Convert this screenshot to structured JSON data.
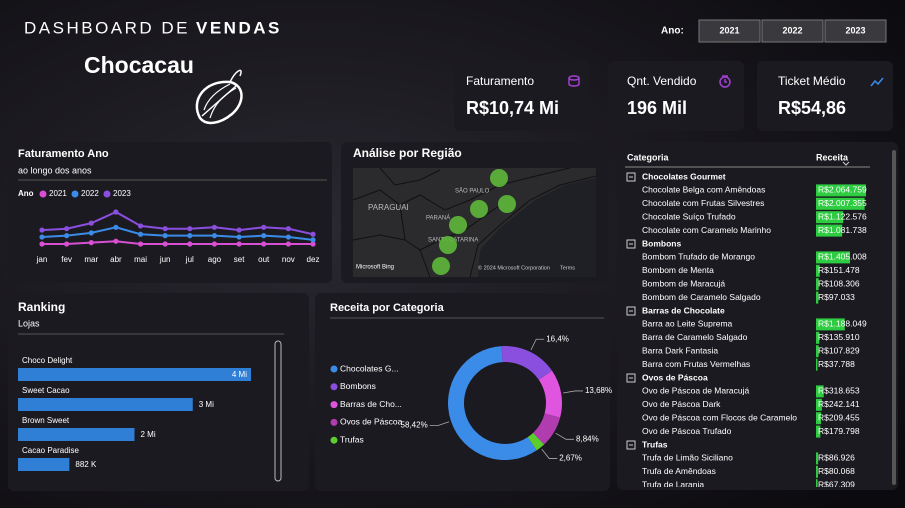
{
  "header": {
    "title_light": "DASHBOARD DE",
    "title_bold": "VENDAS",
    "logo": "Chocacau",
    "year_label": "Ano:",
    "years": [
      "2021",
      "2022",
      "2023"
    ]
  },
  "kpis": [
    {
      "label": "Faturamento",
      "value": "R$10,74 Mi"
    },
    {
      "label": "Qnt. Vendido",
      "value": "196 Mil"
    },
    {
      "label": "Ticket Médio",
      "value": "R$54,86"
    }
  ],
  "map": {
    "title": "Análise por Região",
    "places": [
      "PARAGUAI",
      "SÃO PAULO",
      "PARANÁ",
      "SANTA CATARINA"
    ],
    "credits": [
      "Microsoft Bing",
      "© 2024 Microsoft Corporation",
      "Terms"
    ]
  },
  "chart_data": [
    {
      "type": "line",
      "title": "Faturamento Ano",
      "subtitle": "ao longo dos anos",
      "legend_title": "Ano",
      "categories": [
        "jan",
        "fev",
        "mar",
        "abr",
        "mai",
        "jun",
        "jul",
        "ago",
        "set",
        "out",
        "nov",
        "dez"
      ],
      "series": [
        {
          "name": "2021",
          "color": "#d94fd4",
          "values": [
            0.22,
            0.22,
            0.23,
            0.24,
            0.22,
            0.22,
            0.22,
            0.22,
            0.22,
            0.22,
            0.22,
            0.22
          ]
        },
        {
          "name": "2022",
          "color": "#3b8be8",
          "values": [
            0.27,
            0.28,
            0.3,
            0.34,
            0.29,
            0.28,
            0.28,
            0.28,
            0.27,
            0.28,
            0.27,
            0.25
          ]
        },
        {
          "name": "2023",
          "color": "#8b4fe0",
          "values": [
            0.32,
            0.33,
            0.37,
            0.45,
            0.35,
            0.33,
            0.33,
            0.34,
            0.32,
            0.34,
            0.33,
            0.29
          ]
        }
      ]
    },
    {
      "type": "bar",
      "orientation": "horizontal",
      "title": "Ranking",
      "subtitle": "Lojas",
      "color": "#2f7fd6",
      "categories": [
        "Choco Delight",
        "Sweet Cacao",
        "Brown Sweet",
        "Cacao Paradise"
      ],
      "values": [
        4000000,
        3000000,
        2000000,
        882000
      ],
      "value_labels": [
        "4 Mi",
        "3 Mi",
        "2 Mi",
        "882 K"
      ]
    },
    {
      "type": "pie",
      "donut": true,
      "title": "Receita por Categoria",
      "categories": [
        "Chocolates G...",
        "Bombons",
        "Barras de Cho...",
        "Ovos de Páscoa",
        "Trufas"
      ],
      "colors": [
        "#3b8be8",
        "#8b4fe0",
        "#e055e0",
        "#b03cb0",
        "#5ccc2e"
      ],
      "values": [
        58.42,
        16.4,
        13.68,
        8.84,
        2.67
      ],
      "value_labels": [
        "58,42%",
        "16,4%",
        "13,68%",
        "8,84%",
        "2,67%"
      ]
    }
  ],
  "table": {
    "headers": [
      "Categoria",
      "Receita"
    ],
    "bar_color": "#2ecc40",
    "groups": [
      {
        "name": "Chocolates Gourmet",
        "rows": [
          {
            "name": "Chocolate Belga com Amêndoas",
            "value": 2064759,
            "value_label": "R$2.064.759"
          },
          {
            "name": "Chocolate com Frutas Silvestres",
            "value": 2007355,
            "value_label": "R$2.007.355"
          },
          {
            "name": "Chocolate Suíço Trufado",
            "value": 1122576,
            "value_label": "R$1.122.576"
          },
          {
            "name": "Chocolate com Caramelo Marinho",
            "value": 1081738,
            "value_label": "R$1.081.738"
          }
        ]
      },
      {
        "name": "Bombons",
        "rows": [
          {
            "name": "Bombom Trufado de Morango",
            "value": 1405008,
            "value_label": "R$1.405.008"
          },
          {
            "name": "Bombom de Menta",
            "value": 151478,
            "value_label": "R$151.478"
          },
          {
            "name": "Bombom de Maracujá",
            "value": 108306,
            "value_label": "R$108.306"
          },
          {
            "name": "Bombom de Caramelo Salgado",
            "value": 97033,
            "value_label": "R$97.033"
          }
        ]
      },
      {
        "name": "Barras de Chocolate",
        "rows": [
          {
            "name": "Barra ao Leite Suprema",
            "value": 1188049,
            "value_label": "R$1.188.049"
          },
          {
            "name": "Barra de Caramelo Salgado",
            "value": 135910,
            "value_label": "R$135.910"
          },
          {
            "name": "Barra Dark Fantasia",
            "value": 107829,
            "value_label": "R$107.829"
          },
          {
            "name": "Barra com Frutas Vermelhas",
            "value": 37788,
            "value_label": "R$37.788"
          }
        ]
      },
      {
        "name": "Ovos de Páscoa",
        "rows": [
          {
            "name": "Ovo de Páscoa de Maracujá",
            "value": 318653,
            "value_label": "R$318.653"
          },
          {
            "name": "Ovo de Páscoa Dark",
            "value": 242141,
            "value_label": "R$242.141"
          },
          {
            "name": "Ovo de Páscoa com Flocos de Caramelo",
            "value": 209455,
            "value_label": "R$209.455"
          },
          {
            "name": "Ovo de Páscoa Trufado",
            "value": 179798,
            "value_label": "R$179.798"
          }
        ]
      },
      {
        "name": "Trufas",
        "rows": [
          {
            "name": "Trufa de Limão Siciliano",
            "value": 86926,
            "value_label": "R$86.926"
          },
          {
            "name": "Trufa de Amêndoas",
            "value": 80068,
            "value_label": "R$80.068"
          },
          {
            "name": "Trufa de Laranja",
            "value": 67309,
            "value_label": "R$67.309"
          }
        ]
      }
    ]
  }
}
